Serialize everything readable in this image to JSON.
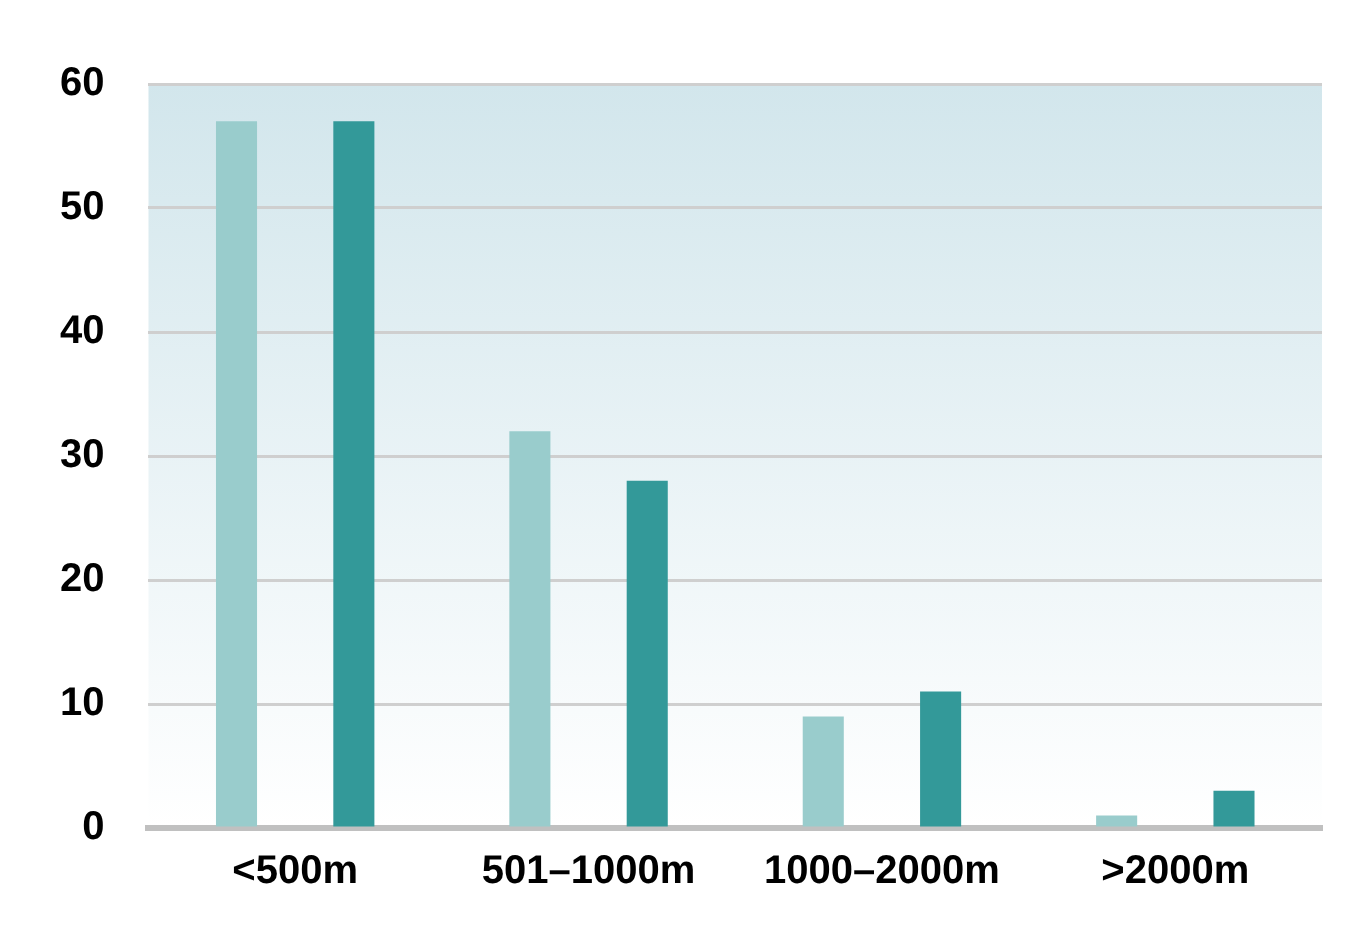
{
  "chart_data": {
    "type": "bar",
    "categories": [
      "<500m",
      "501–1000m",
      "1000–2000m",
      ">2000m"
    ],
    "series": [
      {
        "color": "#99cccc",
        "values": [
          57,
          32,
          9,
          1
        ]
      },
      {
        "color": "#339999",
        "values": [
          57,
          28,
          11,
          3
        ]
      }
    ],
    "ylim": [
      0,
      60
    ],
    "yticks": [
      0,
      10,
      20,
      30,
      40,
      50,
      60
    ],
    "grid": "y",
    "legend": false
  }
}
